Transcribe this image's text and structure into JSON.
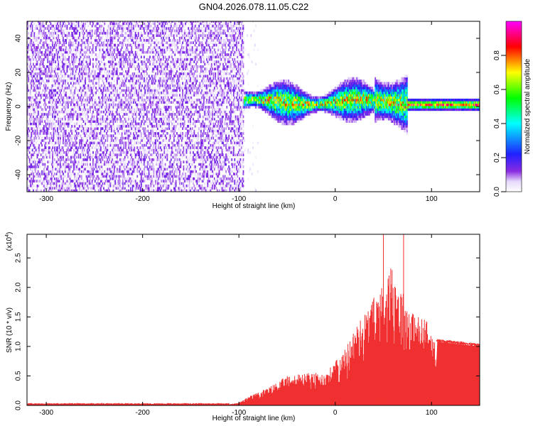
{
  "figure_title": "GN04.2026.078.11.05.C22",
  "chart_data": [
    {
      "type": "heatmap",
      "xlabel": "Height of straight line (km)",
      "ylabel": "Frequency (Hz)",
      "xlim": [
        -320,
        150
      ],
      "ylim": [
        -50,
        50
      ],
      "xticks": [
        -300,
        -200,
        -100,
        0,
        100
      ],
      "yticks": [
        -40,
        -20,
        0,
        20,
        40
      ],
      "colorbar": {
        "label": "Normalized spectral amplitude",
        "range": [
          0.0,
          1.0
        ],
        "ticks": [
          "0.0",
          "0.2",
          "0.4",
          "0.6",
          "0.8"
        ],
        "colormap": [
          "#ffffff",
          "#e6d9fb",
          "#8a2be2",
          "#2020ff",
          "#00ffff",
          "#00ff00",
          "#ffff00",
          "#ff0000",
          "#ff00ff"
        ]
      },
      "regions": [
        {
          "x_range": [
            -320,
            -95
          ],
          "freq_range": [
            -50,
            50
          ],
          "amplitude": "0.0-0.15",
          "description_pattern": "broadband-noise"
        },
        {
          "x_range": [
            -95,
            75
          ],
          "center_freq": [
            1,
            3
          ],
          "width_hz": [
            3,
            8
          ],
          "amplitude": "0.2-0.9"
        },
        {
          "x_range": [
            75,
            150
          ],
          "center_freq": [
            0,
            1
          ],
          "width_hz": [
            1,
            3
          ],
          "amplitude": "0.6-1.0"
        }
      ]
    },
    {
      "type": "line",
      "xlabel": "Height of straight line (km)",
      "ylabel": "SNR (10 * v/v)",
      "yscale_label": "(x10",
      "yscale_exp": "4",
      "ylabel_unit": ")",
      "xlim": [
        -320,
        150
      ],
      "ylim": [
        0,
        2.9
      ],
      "xticks": [
        -300,
        -200,
        -100,
        0,
        100
      ],
      "yticks": [
        "0.0",
        "0.5",
        "1.0",
        "1.5",
        "2.0",
        "2.5"
      ],
      "series_color": "#f03030",
      "envelope": [
        {
          "x": -320,
          "y": 0.02
        },
        {
          "x": -110,
          "y": 0.02
        },
        {
          "x": -100,
          "y": 0.05
        },
        {
          "x": -90,
          "y": 0.15
        },
        {
          "x": -70,
          "y": 0.3
        },
        {
          "x": -50,
          "y": 0.5
        },
        {
          "x": -30,
          "y": 0.55
        },
        {
          "x": -10,
          "y": 0.55
        },
        {
          "x": 10,
          "y": 0.95
        },
        {
          "x": 20,
          "y": 1.3
        },
        {
          "x": 35,
          "y": 1.7
        },
        {
          "x": 50,
          "y": 2.1
        },
        {
          "x": 60,
          "y": 2.4
        },
        {
          "x": 70,
          "y": 1.95
        },
        {
          "x": 80,
          "y": 1.6
        },
        {
          "x": 95,
          "y": 1.45
        },
        {
          "x": 100,
          "y": 1.15
        },
        {
          "x": 105,
          "y": 1.1
        },
        {
          "x": 150,
          "y": 1.02
        }
      ],
      "peaks": [
        {
          "x": 50,
          "y": 2.9
        },
        {
          "x": 71,
          "y": 2.9
        }
      ]
    }
  ]
}
